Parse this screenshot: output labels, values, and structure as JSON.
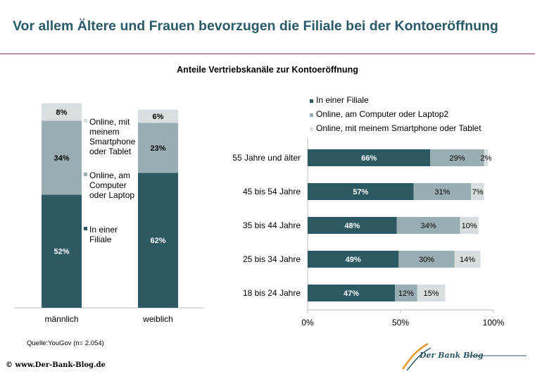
{
  "title": "Vor allem Ältere und Frauen bevorzugen die Filiale bei der Kontoeröffnung",
  "subtitle": "Anteile Vertriebskanäle zur Kontoeröffnung",
  "source": "Quelle:YouGov (n= 2.054)",
  "footer": "© www.Der-Bank-Blog.de",
  "logo_text": "Der Bank Blog",
  "colors": {
    "filiale": "#2d5964",
    "computer": "#98aeb4",
    "smartphone": "#d9dfe1",
    "title": "#2a5a68",
    "rule": "#8e3d66"
  },
  "chart_data": [
    {
      "type": "bar",
      "stacked": true,
      "orientation": "vertical",
      "categories": [
        "männlich",
        "weiblich"
      ],
      "series": [
        {
          "name": "In einer Filiale",
          "values": [
            52,
            62
          ],
          "labels": [
            "52%",
            "62%"
          ]
        },
        {
          "name": "Online, am Computer oder Laptop",
          "values": [
            34,
            23
          ],
          "labels": [
            "34%",
            "23%"
          ]
        },
        {
          "name": "Online, mit meinem Smartphone oder Tablet",
          "values": [
            8,
            6
          ],
          "labels": [
            "8%",
            "6%"
          ]
        }
      ],
      "legend": [
        "In einer Filiale",
        "Online, am Computer oder Laptop",
        "Online, mit meinem Smartphone oder Tablet"
      ],
      "legend_lines": [
        [
          "In einer",
          "Filiale"
        ],
        [
          "Online, am",
          "Computer",
          "oder Laptop"
        ],
        [
          "Online, mit",
          "meinem",
          "Smartphone",
          "oder Tablet"
        ]
      ],
      "legend_position": "right",
      "ylim": [
        0,
        100
      ]
    },
    {
      "type": "bar",
      "stacked": true,
      "orientation": "horizontal",
      "categories": [
        "55 Jahre und älter",
        "45 bis 54 Jahre",
        "35 bis 44 Jahre",
        "25 bis 34 Jahre",
        "18 bis 24 Jahre"
      ],
      "series": [
        {
          "name": "In einer Filiale",
          "values": [
            66,
            57,
            48,
            49,
            47
          ],
          "labels": [
            "66%",
            "57%",
            "48%",
            "49%",
            "47%"
          ]
        },
        {
          "name": "Online, am Computer oder Laptop2",
          "values": [
            29,
            31,
            34,
            30,
            12
          ],
          "labels": [
            "29%",
            "31%",
            "34%",
            "30%",
            "12%"
          ]
        },
        {
          "name": "Online, mit meinem Smartphone oder Tablet",
          "values": [
            2,
            7,
            10,
            14,
            15
          ],
          "labels": [
            "2%",
            "7%",
            "10%",
            "14%",
            "15%"
          ]
        }
      ],
      "legend_position": "top",
      "xlim": [
        0,
        100
      ],
      "xticks": [
        "0%",
        "50%",
        "100%"
      ]
    }
  ]
}
